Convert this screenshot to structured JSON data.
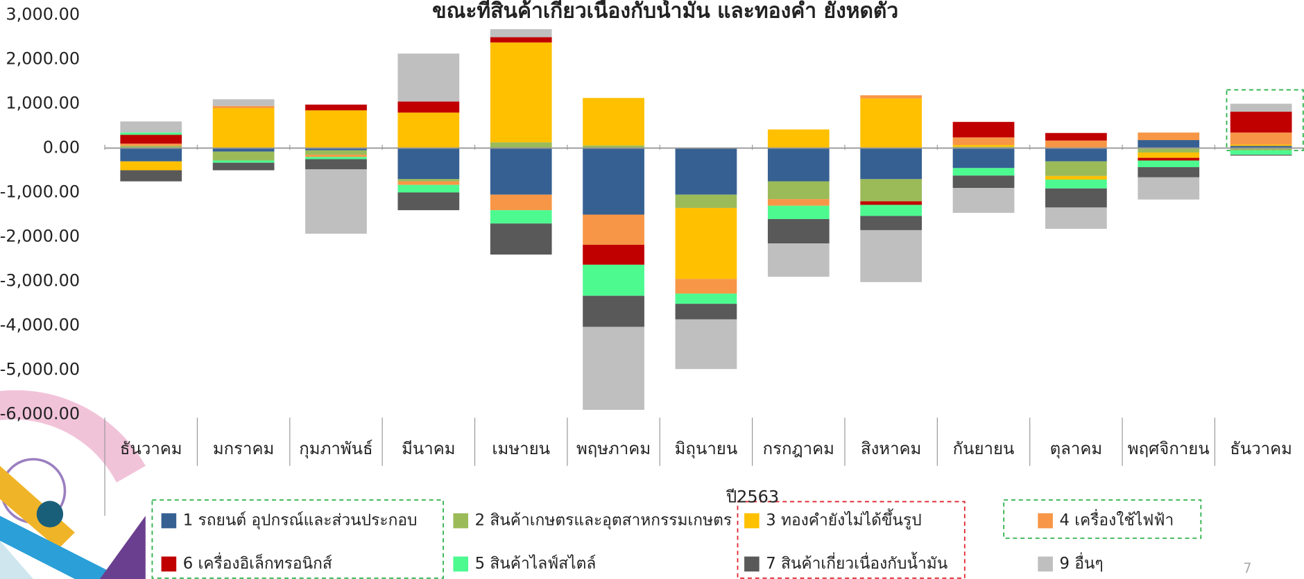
{
  "chart_data": {
    "type": "bar",
    "stacked": true,
    "title": "ขณะที่สินค้าเกี่ยวเนื่องกับน้ำมัน และทองคำ ยังหดตัว",
    "x_label": "ปี2563",
    "page_number": "7",
    "categories": [
      "ธันวาคม",
      "มกราคม",
      "กุมภาพันธ์",
      "มีนาคม",
      "เมษายน",
      "พฤษภาคม",
      "มิถุนายน",
      "กรกฎาคม",
      "สิงหาคม",
      "กันยายน",
      "ตุลาคม",
      "พฤศจิกายน",
      "ธันวาคม"
    ],
    "series": [
      {
        "name": "1 รถยนต์ อุปกรณ์และส่วนประกอบ",
        "color": "#366092",
        "values": [
          -300,
          -80,
          -50,
          -700,
          -1050,
          -1500,
          -1050,
          -750,
          -700,
          -450,
          -300,
          180,
          50
        ]
      },
      {
        "name": "2 สินค้าเกษตรและอุตสาหกรรมเกษตร",
        "color": "#9bbb59",
        "values": [
          50,
          -200,
          -100,
          -50,
          130,
          60,
          -300,
          -400,
          -500,
          30,
          -330,
          -100,
          -50
        ]
      },
      {
        "name": "3 ทองคำยังไม่ได้ขึ้นรูป",
        "color": "#ffc000",
        "values": [
          -200,
          900,
          850,
          800,
          2250,
          1070,
          -1600,
          420,
          1120,
          40,
          -80,
          -120,
          30
        ]
      },
      {
        "name": "4 เครื่องใช้ไฟฟ้า",
        "color": "#f79646",
        "values": [
          50,
          50,
          -50,
          -80,
          -350,
          -680,
          -330,
          -150,
          70,
          170,
          170,
          170,
          270
        ]
      },
      {
        "name": "6 เครื่องอิเล็กทรอนิกส์",
        "color": "#c00000",
        "values": [
          200,
          0,
          130,
          250,
          120,
          -450,
          0,
          0,
          -80,
          350,
          170,
          -60,
          470
        ]
      },
      {
        "name": "5 สินค้าไลฟ์สไตล์",
        "color": "#4dfa90",
        "values": [
          50,
          -50,
          -50,
          -170,
          -300,
          -700,
          -230,
          -300,
          -250,
          -170,
          -200,
          -150,
          -100
        ]
      },
      {
        "name": "7 สินค้าเกี่ยวเนื่องกับน้ำมัน",
        "color": "#595959",
        "values": [
          -250,
          -170,
          -230,
          -400,
          -700,
          -700,
          -350,
          -550,
          -320,
          -280,
          -430,
          -230,
          -20
        ]
      },
      {
        "name": "9 อื่นๆ",
        "color": "#bfbfbf",
        "values": [
          250,
          150,
          -1450,
          1080,
          180,
          -1870,
          -1120,
          -750,
          -1170,
          -560,
          -480,
          -500,
          180
        ]
      }
    ],
    "ylim": [
      -6000,
      3000
    ],
    "yticks": [
      {
        "value": -6000,
        "label": "-6,000.00"
      },
      {
        "value": -5000,
        "label": "-5,000.00"
      },
      {
        "value": -4000,
        "label": "-4,000.00"
      },
      {
        "value": -3000,
        "label": "-3,000.00"
      },
      {
        "value": -2000,
        "label": "-2,000.00"
      },
      {
        "value": -1000,
        "label": "-1,000.00"
      },
      {
        "value": 0,
        "label": "0.00"
      },
      {
        "value": 1000,
        "label": "1,000.00"
      },
      {
        "value": 2000,
        "label": "2,000.00"
      },
      {
        "value": 3000,
        "label": "3,000.00"
      }
    ]
  }
}
